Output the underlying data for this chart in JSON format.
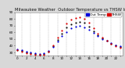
{
  "title": "Milwaukee Weather  Outdoor Temperature vs THSW Index  per Hour  (24 Hours)",
  "background_color": "#d8d8d8",
  "plot_bg_color": "#ffffff",
  "grid_color": "#aaaaaa",
  "xlim": [
    -0.5,
    23.5
  ],
  "ylim": [
    25,
    90
  ],
  "ytick_values": [
    30,
    40,
    50,
    60,
    70,
    80,
    90
  ],
  "ytick_labels": [
    "30",
    "40",
    "50",
    "60",
    "70",
    "80",
    "90"
  ],
  "legend_blue_label": "Out Temp",
  "legend_red_label": "THSW",
  "outdoor_temp": [
    [
      0,
      35
    ],
    [
      1,
      33
    ],
    [
      2,
      31
    ],
    [
      3,
      30
    ],
    [
      4,
      29
    ],
    [
      5,
      28
    ],
    [
      6,
      29
    ],
    [
      7,
      32
    ],
    [
      8,
      38
    ],
    [
      9,
      46
    ],
    [
      10,
      54
    ],
    [
      11,
      61
    ],
    [
      12,
      66
    ],
    [
      13,
      69
    ],
    [
      14,
      70
    ],
    [
      15,
      68
    ],
    [
      16,
      64
    ],
    [
      17,
      59
    ],
    [
      18,
      54
    ],
    [
      19,
      50
    ],
    [
      20,
      47
    ],
    [
      21,
      44
    ],
    [
      22,
      41
    ],
    [
      23,
      39
    ]
  ],
  "thsw": [
    [
      0,
      33
    ],
    [
      1,
      31
    ],
    [
      2,
      29
    ],
    [
      3,
      28
    ],
    [
      4,
      27
    ],
    [
      5,
      26
    ],
    [
      6,
      27
    ],
    [
      7,
      31
    ],
    [
      8,
      40
    ],
    [
      9,
      52
    ],
    [
      10,
      63
    ],
    [
      11,
      73
    ],
    [
      12,
      79
    ],
    [
      13,
      82
    ],
    [
      14,
      83
    ],
    [
      15,
      80
    ],
    [
      16,
      74
    ],
    [
      17,
      66
    ],
    [
      18,
      58
    ],
    [
      19,
      52
    ],
    [
      20,
      47
    ],
    [
      21,
      43
    ],
    [
      22,
      39
    ],
    [
      23,
      37
    ]
  ],
  "avg_temp": [
    [
      0,
      34
    ],
    [
      1,
      32
    ],
    [
      2,
      30
    ],
    [
      3,
      29
    ],
    [
      4,
      28
    ],
    [
      5,
      27
    ],
    [
      6,
      28
    ],
    [
      7,
      31
    ],
    [
      8,
      39
    ],
    [
      9,
      49
    ],
    [
      10,
      58
    ],
    [
      11,
      67
    ],
    [
      12,
      72
    ],
    [
      13,
      75
    ],
    [
      14,
      76
    ],
    [
      15,
      74
    ],
    [
      16,
      69
    ],
    [
      17,
      62
    ],
    [
      18,
      56
    ],
    [
      19,
      51
    ],
    [
      20,
      47
    ],
    [
      21,
      43
    ],
    [
      22,
      40
    ],
    [
      23,
      38
    ]
  ],
  "dot_size": 2.5,
  "outdoor_color": "#0000dd",
  "thsw_color": "#dd0000",
  "avg_color": "#111111",
  "title_fontsize": 3.8,
  "tick_fontsize": 3.0,
  "legend_fontsize": 3.2
}
